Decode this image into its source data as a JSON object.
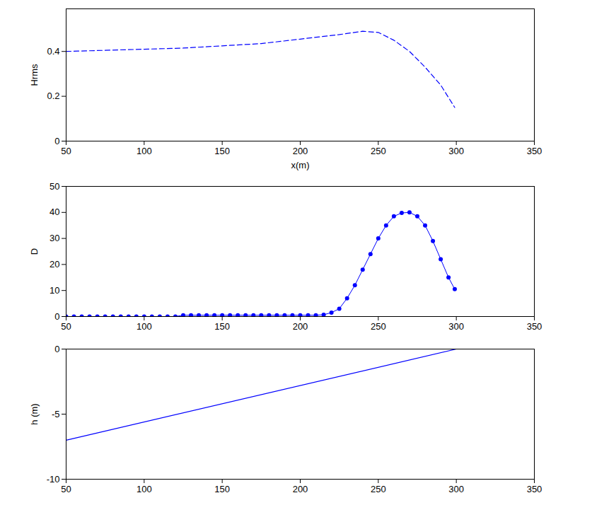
{
  "chart_data": [
    {
      "type": "line",
      "y_label": "Hrms",
      "x_label": "x(m)",
      "x": [
        50,
        75,
        100,
        125,
        150,
        175,
        200,
        225,
        240,
        250,
        260,
        270,
        280,
        290,
        299
      ],
      "values": [
        0.4,
        0.405,
        0.41,
        0.415,
        0.425,
        0.435,
        0.455,
        0.475,
        0.49,
        0.485,
        0.45,
        0.4,
        0.33,
        0.25,
        0.15
      ],
      "color": "#0000ff",
      "line_style": "dashed",
      "xlim": [
        50,
        350
      ],
      "xticks": [
        50,
        100,
        150,
        200,
        250,
        300,
        350
      ],
      "ylim": [
        0,
        0.59
      ],
      "yticks": [
        0,
        0.2,
        0.4
      ]
    },
    {
      "type": "line",
      "y_label": "D",
      "x": [
        50,
        55,
        60,
        65,
        70,
        75,
        80,
        85,
        90,
        95,
        100,
        105,
        110,
        115,
        120,
        125,
        130,
        135,
        140,
        145,
        150,
        155,
        160,
        165,
        170,
        175,
        180,
        185,
        190,
        195,
        200,
        205,
        210,
        215,
        220,
        225,
        230,
        235,
        240,
        245,
        250,
        255,
        260,
        265,
        270,
        275,
        280,
        285,
        290,
        295,
        299
      ],
      "values": [
        0,
        0,
        0,
        0,
        0,
        0,
        0,
        0,
        0,
        0,
        0,
        0,
        0,
        0,
        0,
        0.5,
        0.5,
        0.5,
        0.5,
        0.5,
        0.5,
        0.5,
        0.5,
        0.5,
        0.5,
        0.5,
        0.5,
        0.5,
        0.5,
        0.5,
        0.5,
        0.5,
        0.5,
        0.7,
        1.5,
        3,
        7,
        12,
        18,
        24,
        30,
        35,
        38.5,
        39.8,
        40,
        38.5,
        35,
        29,
        22,
        15,
        10.5
      ],
      "color": "#0000ff",
      "marker": "circle",
      "xlim": [
        50,
        350
      ],
      "xticks": [
        50,
        100,
        150,
        200,
        250,
        300,
        350
      ],
      "ylim": [
        0,
        50
      ],
      "yticks": [
        0,
        10,
        20,
        30,
        40,
        50
      ]
    },
    {
      "type": "line",
      "y_label": "h (m)",
      "x": [
        50,
        300
      ],
      "values": [
        -7,
        0
      ],
      "color": "#0000ff",
      "line_style": "solid",
      "xlim": [
        50,
        350
      ],
      "xticks": [
        50,
        100,
        150,
        200,
        250,
        300,
        350
      ],
      "ylim": [
        -10,
        0
      ],
      "yticks": [
        -10,
        -5,
        0
      ]
    }
  ]
}
